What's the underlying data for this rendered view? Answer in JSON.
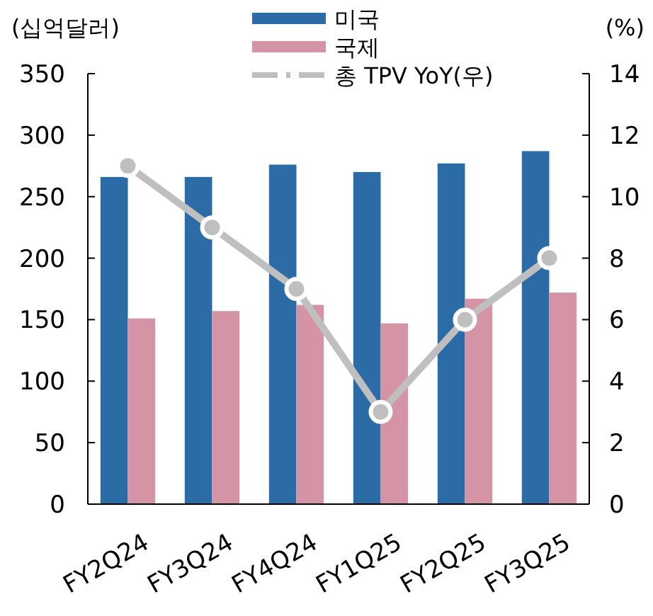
{
  "chart_data": {
    "type": "bar",
    "ylabel": "(십억달러)",
    "y2label": "(%)",
    "categories": [
      "FY2Q24",
      "FY3Q24",
      "FY4Q24",
      "FY1Q25",
      "FY2Q25",
      "FY3Q25"
    ],
    "series": [
      {
        "name": "미국",
        "color": "#2b6ca6",
        "values": [
          266,
          266,
          276,
          270,
          277,
          287
        ]
      },
      {
        "name": "국제",
        "color": "#d494a6",
        "values": [
          151,
          157,
          162,
          147,
          167,
          172
        ]
      },
      {
        "name": "총 TPV YoY(우)",
        "type": "line",
        "axis": "y2",
        "color": "#bfbfbf",
        "values": [
          11,
          9,
          7,
          3,
          6,
          8
        ],
        "marker": "circle"
      }
    ],
    "ylim": [
      0,
      350
    ],
    "yticks": [
      0,
      50,
      100,
      150,
      200,
      250,
      300,
      350
    ],
    "y2lim": [
      0,
      14
    ],
    "y2ticks": [
      0,
      2,
      4,
      6,
      8,
      10,
      12,
      14
    ],
    "legend": "top"
  }
}
